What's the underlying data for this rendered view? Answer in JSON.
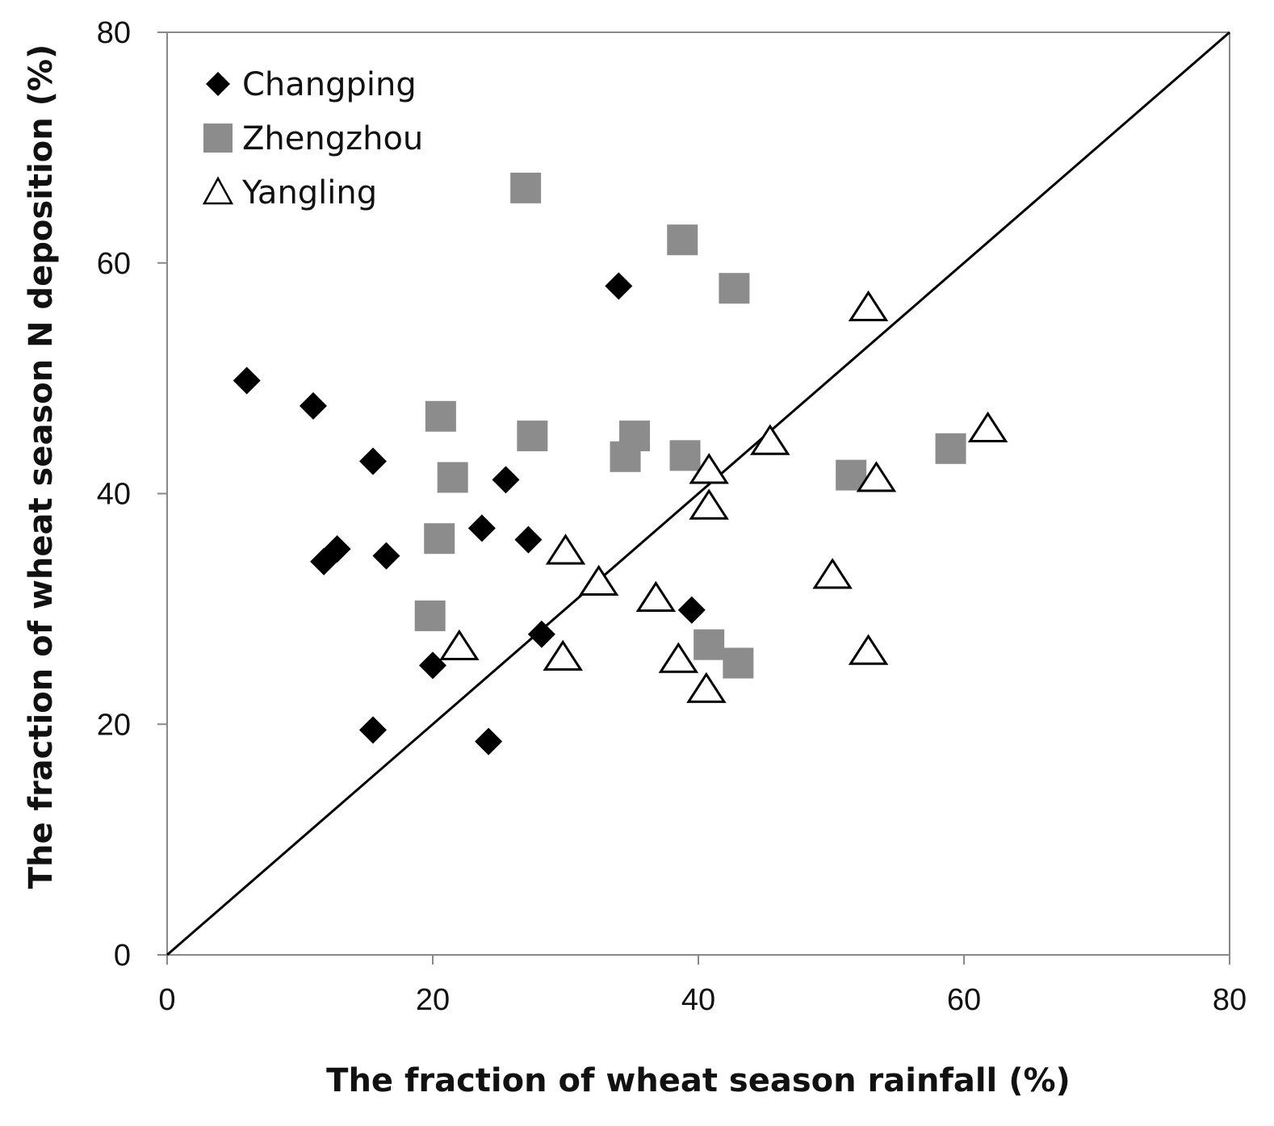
{
  "chart_data": {
    "type": "scatter",
    "title": "",
    "xlabel": "The fraction of wheat season rainfall (%)",
    "ylabel": "The fraction of wheat season N deposition (%)",
    "xlim": [
      0,
      80
    ],
    "ylim": [
      0,
      80
    ],
    "xticks": [
      0,
      20,
      40,
      60,
      80
    ],
    "yticks": [
      0,
      20,
      40,
      60,
      80
    ],
    "grid": false,
    "legend_position": "top-left",
    "reference_line": {
      "type": "1:1",
      "from": [
        0,
        0
      ],
      "to": [
        80,
        80
      ]
    },
    "series": [
      {
        "name": "Changping",
        "marker": "diamond",
        "color": "#000000",
        "points": [
          [
            6,
            49.8
          ],
          [
            11,
            47.6
          ],
          [
            15.5,
            42.8
          ],
          [
            25.5,
            41.2
          ],
          [
            23.7,
            37
          ],
          [
            27.2,
            36
          ],
          [
            11.8,
            34.1
          ],
          [
            12.8,
            35.2
          ],
          [
            16.5,
            34.6
          ],
          [
            34,
            58
          ],
          [
            39.5,
            29.9
          ],
          [
            28.2,
            27.8
          ],
          [
            20,
            25.1
          ],
          [
            15.5,
            19.5
          ],
          [
            24.2,
            18.5
          ]
        ]
      },
      {
        "name": "Zhengzhou",
        "marker": "square",
        "color": "#8c8c8c",
        "points": [
          [
            27,
            66.5
          ],
          [
            38.8,
            62
          ],
          [
            42.7,
            57.8
          ],
          [
            20.6,
            46.7
          ],
          [
            27.5,
            45
          ],
          [
            35.2,
            45
          ],
          [
            34.5,
            43.2
          ],
          [
            39,
            43.3
          ],
          [
            21.5,
            41.4
          ],
          [
            51.5,
            41.6
          ],
          [
            59,
            43.9
          ],
          [
            20.5,
            36.1
          ],
          [
            19.8,
            29.4
          ],
          [
            40.8,
            26.9
          ],
          [
            43,
            25.3
          ]
        ]
      },
      {
        "name": "Yangling",
        "marker": "triangle-open",
        "color": "#000000",
        "points": [
          [
            52.8,
            56
          ],
          [
            61.8,
            45.5
          ],
          [
            45.4,
            44.4
          ],
          [
            40.8,
            41.9
          ],
          [
            53.4,
            41.2
          ],
          [
            40.8,
            38.8
          ],
          [
            30,
            34.9
          ],
          [
            32.5,
            32.2
          ],
          [
            36.8,
            30.8
          ],
          [
            50.1,
            32.8
          ],
          [
            22,
            26.6
          ],
          [
            29.8,
            25.7
          ],
          [
            38.5,
            25.5
          ],
          [
            52.8,
            26.2
          ],
          [
            40.6,
            22.9
          ]
        ]
      }
    ]
  }
}
